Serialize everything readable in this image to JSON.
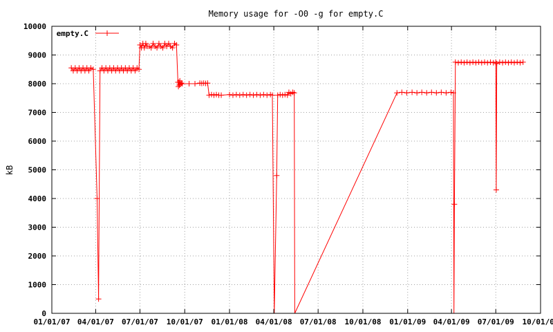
{
  "chart_data": {
    "type": "line",
    "title": "Memory usage for -O0 -g for empty.C",
    "xlabel": "",
    "ylabel": "kB",
    "xlim": [
      "2007-01-01",
      "2009-10-01"
    ],
    "ylim": [
      0,
      10000
    ],
    "x_ticks": [
      "01/01/07",
      "04/01/07",
      "07/01/07",
      "10/01/07",
      "01/01/08",
      "04/01/08",
      "07/01/08",
      "10/01/08",
      "01/01/09",
      "04/01/09",
      "07/01/09",
      "10/01/09"
    ],
    "y_ticks": [
      "0",
      "1000",
      "2000",
      "3000",
      "4000",
      "5000",
      "6000",
      "7000",
      "8000",
      "9000",
      "10000"
    ],
    "grid": true,
    "legend_position": "top-left",
    "series": [
      {
        "name": "empty.C",
        "color": "#ff0000",
        "marker": "plus",
        "points": [
          {
            "x": "2007-02-10",
            "y": 8550
          },
          {
            "x": "2007-02-14",
            "y": 8450
          },
          {
            "x": "2007-02-18",
            "y": 8550
          },
          {
            "x": "2007-02-22",
            "y": 8450
          },
          {
            "x": "2007-02-26",
            "y": 8550
          },
          {
            "x": "2007-03-02",
            "y": 8450
          },
          {
            "x": "2007-03-06",
            "y": 8550
          },
          {
            "x": "2007-03-10",
            "y": 8450
          },
          {
            "x": "2007-03-14",
            "y": 8550
          },
          {
            "x": "2007-03-18",
            "y": 8450
          },
          {
            "x": "2007-03-22",
            "y": 8550
          },
          {
            "x": "2007-03-27",
            "y": 8500
          },
          {
            "x": "2007-04-04",
            "y": 4000
          },
          {
            "x": "2007-04-07",
            "y": 500
          },
          {
            "x": "2007-04-10",
            "y": 8450
          },
          {
            "x": "2007-04-14",
            "y": 8550
          },
          {
            "x": "2007-04-18",
            "y": 8450
          },
          {
            "x": "2007-04-22",
            "y": 8550
          },
          {
            "x": "2007-04-26",
            "y": 8450
          },
          {
            "x": "2007-04-30",
            "y": 8550
          },
          {
            "x": "2007-05-04",
            "y": 8450
          },
          {
            "x": "2007-05-08",
            "y": 8550
          },
          {
            "x": "2007-05-12",
            "y": 8450
          },
          {
            "x": "2007-05-16",
            "y": 8550
          },
          {
            "x": "2007-05-20",
            "y": 8450
          },
          {
            "x": "2007-05-24",
            "y": 8550
          },
          {
            "x": "2007-05-28",
            "y": 8450
          },
          {
            "x": "2007-06-01",
            "y": 8550
          },
          {
            "x": "2007-06-05",
            "y": 8450
          },
          {
            "x": "2007-06-09",
            "y": 8550
          },
          {
            "x": "2007-06-13",
            "y": 8450
          },
          {
            "x": "2007-06-17",
            "y": 8550
          },
          {
            "x": "2007-06-21",
            "y": 8450
          },
          {
            "x": "2007-06-25",
            "y": 8550
          },
          {
            "x": "2007-06-29",
            "y": 8500
          },
          {
            "x": "2007-07-01",
            "y": 9350
          },
          {
            "x": "2007-07-04",
            "y": 9250
          },
          {
            "x": "2007-07-07",
            "y": 9400
          },
          {
            "x": "2007-07-10",
            "y": 9250
          },
          {
            "x": "2007-07-13",
            "y": 9400
          },
          {
            "x": "2007-07-16",
            "y": 9300
          },
          {
            "x": "2007-07-20",
            "y": 9300
          },
          {
            "x": "2007-07-24",
            "y": 9250
          },
          {
            "x": "2007-07-28",
            "y": 9400
          },
          {
            "x": "2007-08-01",
            "y": 9300
          },
          {
            "x": "2007-08-05",
            "y": 9250
          },
          {
            "x": "2007-08-09",
            "y": 9400
          },
          {
            "x": "2007-08-13",
            "y": 9300
          },
          {
            "x": "2007-08-17",
            "y": 9250
          },
          {
            "x": "2007-08-21",
            "y": 9400
          },
          {
            "x": "2007-08-25",
            "y": 9300
          },
          {
            "x": "2007-08-29",
            "y": 9400
          },
          {
            "x": "2007-09-02",
            "y": 9300
          },
          {
            "x": "2007-09-06",
            "y": 9250
          },
          {
            "x": "2007-09-10",
            "y": 9400
          },
          {
            "x": "2007-09-14",
            "y": 9350
          },
          {
            "x": "2007-09-17",
            "y": 8050
          },
          {
            "x": "2007-09-18",
            "y": 7900
          },
          {
            "x": "2007-09-19",
            "y": 8050
          },
          {
            "x": "2007-09-20",
            "y": 7950
          },
          {
            "x": "2007-09-21",
            "y": 8100
          },
          {
            "x": "2007-09-22",
            "y": 7980
          },
          {
            "x": "2007-09-24",
            "y": 8020
          },
          {
            "x": "2007-09-26",
            "y": 8000
          },
          {
            "x": "2007-10-10",
            "y": 8000
          },
          {
            "x": "2007-10-22",
            "y": 8000
          },
          {
            "x": "2007-11-01",
            "y": 8020
          },
          {
            "x": "2007-11-05",
            "y": 8010
          },
          {
            "x": "2007-11-09",
            "y": 8020
          },
          {
            "x": "2007-11-13",
            "y": 8010
          },
          {
            "x": "2007-11-17",
            "y": 8020
          },
          {
            "x": "2007-11-20",
            "y": 7600
          },
          {
            "x": "2007-11-25",
            "y": 7620
          },
          {
            "x": "2007-11-30",
            "y": 7600
          },
          {
            "x": "2007-12-05",
            "y": 7620
          },
          {
            "x": "2007-12-10",
            "y": 7600
          },
          {
            "x": "2007-12-15",
            "y": 7600
          },
          {
            "x": "2008-01-01",
            "y": 7620
          },
          {
            "x": "2008-01-08",
            "y": 7600
          },
          {
            "x": "2008-01-15",
            "y": 7620
          },
          {
            "x": "2008-01-22",
            "y": 7600
          },
          {
            "x": "2008-01-29",
            "y": 7620
          },
          {
            "x": "2008-02-05",
            "y": 7600
          },
          {
            "x": "2008-02-12",
            "y": 7620
          },
          {
            "x": "2008-02-19",
            "y": 7600
          },
          {
            "x": "2008-02-26",
            "y": 7620
          },
          {
            "x": "2008-03-04",
            "y": 7600
          },
          {
            "x": "2008-03-11",
            "y": 7620
          },
          {
            "x": "2008-03-18",
            "y": 7600
          },
          {
            "x": "2008-03-25",
            "y": 7620
          },
          {
            "x": "2008-03-29",
            "y": 7600
          },
          {
            "x": "2008-04-02",
            "y": 0
          },
          {
            "x": "2008-04-07",
            "y": 4800
          },
          {
            "x": "2008-04-09",
            "y": 7600
          },
          {
            "x": "2008-04-14",
            "y": 7620
          },
          {
            "x": "2008-04-19",
            "y": 7600
          },
          {
            "x": "2008-04-24",
            "y": 7620
          },
          {
            "x": "2008-04-29",
            "y": 7600
          },
          {
            "x": "2008-05-02",
            "y": 7700
          },
          {
            "x": "2008-05-06",
            "y": 7650
          },
          {
            "x": "2008-05-10",
            "y": 7700
          },
          {
            "x": "2008-05-13",
            "y": 7680
          },
          {
            "x": "2008-05-14",
            "y": 0
          },
          {
            "x": "2008-12-10",
            "y": 7680
          },
          {
            "x": "2008-12-20",
            "y": 7700
          },
          {
            "x": "2008-12-30",
            "y": 7680
          },
          {
            "x": "2009-01-10",
            "y": 7700
          },
          {
            "x": "2009-01-20",
            "y": 7680
          },
          {
            "x": "2009-01-30",
            "y": 7700
          },
          {
            "x": "2009-02-09",
            "y": 7680
          },
          {
            "x": "2009-02-19",
            "y": 7700
          },
          {
            "x": "2009-03-01",
            "y": 7680
          },
          {
            "x": "2009-03-11",
            "y": 7700
          },
          {
            "x": "2009-03-21",
            "y": 7680
          },
          {
            "x": "2009-03-31",
            "y": 7700
          },
          {
            "x": "2009-04-05",
            "y": 7680
          },
          {
            "x": "2009-04-06",
            "y": 0
          },
          {
            "x": "2009-04-07",
            "y": 3800
          },
          {
            "x": "2009-04-09",
            "y": 8750
          },
          {
            "x": "2009-04-15",
            "y": 8730
          },
          {
            "x": "2009-04-21",
            "y": 8750
          },
          {
            "x": "2009-04-27",
            "y": 8730
          },
          {
            "x": "2009-05-03",
            "y": 8750
          },
          {
            "x": "2009-05-09",
            "y": 8730
          },
          {
            "x": "2009-05-15",
            "y": 8750
          },
          {
            "x": "2009-05-21",
            "y": 8730
          },
          {
            "x": "2009-05-27",
            "y": 8750
          },
          {
            "x": "2009-06-02",
            "y": 8730
          },
          {
            "x": "2009-06-08",
            "y": 8750
          },
          {
            "x": "2009-06-14",
            "y": 8730
          },
          {
            "x": "2009-06-20",
            "y": 8750
          },
          {
            "x": "2009-06-26",
            "y": 8730
          },
          {
            "x": "2009-07-01",
            "y": 8750
          },
          {
            "x": "2009-07-02",
            "y": 4300
          },
          {
            "x": "2009-07-03",
            "y": 8700
          },
          {
            "x": "2009-07-09",
            "y": 8750
          },
          {
            "x": "2009-07-15",
            "y": 8730
          },
          {
            "x": "2009-07-21",
            "y": 8750
          },
          {
            "x": "2009-07-27",
            "y": 8730
          },
          {
            "x": "2009-08-02",
            "y": 8750
          },
          {
            "x": "2009-08-08",
            "y": 8730
          },
          {
            "x": "2009-08-14",
            "y": 8750
          },
          {
            "x": "2009-08-20",
            "y": 8730
          },
          {
            "x": "2009-08-26",
            "y": 8750
          }
        ]
      }
    ]
  }
}
